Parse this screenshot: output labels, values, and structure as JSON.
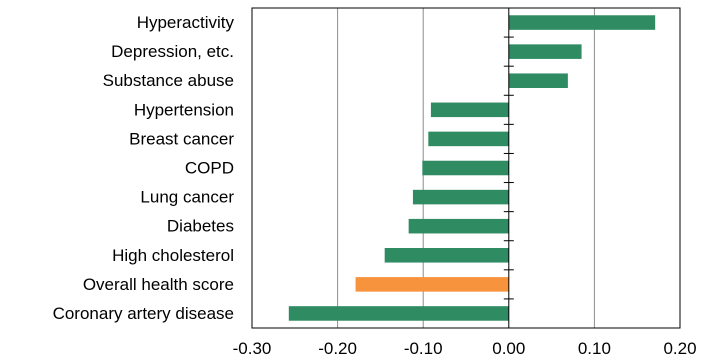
{
  "chart_data": {
    "type": "bar",
    "orientation": "horizontal",
    "categories": [
      "Hyperactivity",
      "Depression, etc.",
      "Substance abuse",
      "Hypertension",
      "Breast cancer",
      "COPD",
      "Lung cancer",
      "Diabetes",
      "High cholesterol",
      "Overall health score",
      "Coronary artery disease"
    ],
    "values": [
      0.171,
      0.085,
      0.069,
      -0.091,
      -0.094,
      -0.101,
      -0.112,
      -0.117,
      -0.145,
      -0.179,
      -0.257
    ],
    "highlight_category": "Overall health score",
    "xlim": [
      -0.3,
      0.2
    ],
    "xticks": [
      -0.3,
      -0.2,
      -0.1,
      0.0,
      0.1,
      0.2
    ],
    "xtick_labels": [
      "-0.30",
      "-0.20",
      "-0.10",
      "0.00",
      "0.10",
      "0.20"
    ],
    "title": "",
    "xlabel": "",
    "ylabel": "",
    "grid": "vertical",
    "legend": "none",
    "colors": {
      "bar": "#2e8b62",
      "highlight": "#f7923d",
      "grid": "#8c8c8c",
      "axis": "#000000"
    }
  }
}
